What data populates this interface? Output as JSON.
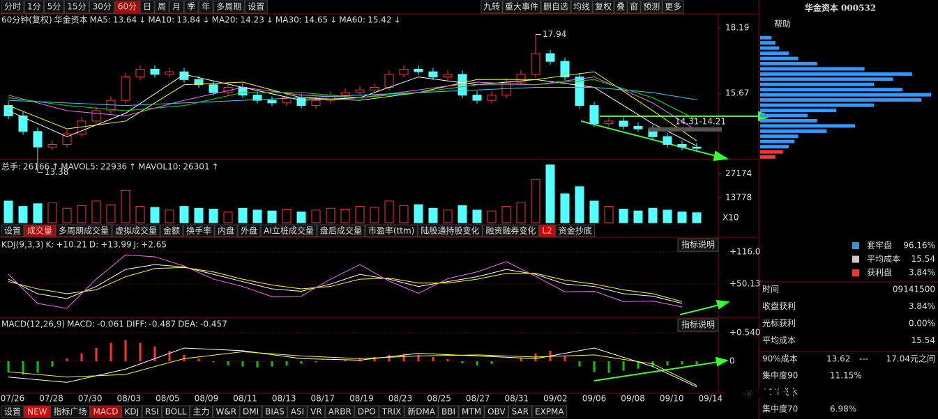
{
  "toolbar": {
    "left": [
      "分时",
      "1分",
      "5分",
      "15分",
      "30分",
      "60分",
      "日",
      "周",
      "月",
      "季",
      "年",
      "多周期",
      "设置"
    ],
    "active": "60分",
    "right": [
      "九转",
      "重大事件",
      "删自选",
      "均线",
      "复权",
      "叠",
      "窗",
      "预测",
      "更多"
    ]
  },
  "price_panel": {
    "period": "60分钟(复权)",
    "name": "华金资本",
    "mas": [
      {
        "label": "MA5:",
        "value": 13.64,
        "arrow": "↓",
        "color": "#ffffff",
        "line": [
          15.0,
          14.0,
          14.9,
          16.4,
          15.9,
          15.4,
          15.5,
          16.3,
          16.0,
          16.2,
          15.9,
          14.5,
          13.64
        ]
      },
      {
        "label": "MA10:",
        "value": 13.84,
        "arrow": "↓",
        "color": "#ffff00",
        "line": [
          15.2,
          14.3,
          14.6,
          16.0,
          16.1,
          15.5,
          15.4,
          15.7,
          16.2,
          16.2,
          16.5,
          15.0,
          13.84
        ]
      },
      {
        "label": "MA20:",
        "value": 14.23,
        "arrow": "↓",
        "color": "#ff66ff",
        "line": [
          15.6,
          15.0,
          14.8,
          15.4,
          15.9,
          15.6,
          15.5,
          15.8,
          16.1,
          16.0,
          16.3,
          15.3,
          14.23
        ]
      },
      {
        "label": "MA30:",
        "value": 14.65,
        "arrow": "↓",
        "color": "#00e600",
        "line": [
          15.5,
          15.2,
          15.0,
          15.2,
          15.7,
          15.7,
          15.5,
          15.7,
          16.0,
          16.0,
          16.2,
          15.5,
          14.65
        ]
      },
      {
        "label": "MA60:",
        "value": 15.42,
        "arrow": "↓",
        "color": "#33ccff",
        "line": [
          15.4,
          15.3,
          15.2,
          15.3,
          15.4,
          15.5,
          15.6,
          15.7,
          15.8,
          15.9,
          15.9,
          15.7,
          15.42
        ]
      }
    ],
    "ma_x": [
      0,
      4,
      8,
      12,
      16,
      20,
      24,
      28,
      32,
      36,
      40,
      44,
      47
    ],
    "ylim": [
      13.15,
      18.73
    ],
    "yticks": [
      18.19,
      15.67
    ],
    "open": [
      15.2,
      14.8,
      14.2,
      13.6,
      13.7,
      14.1,
      14.6,
      15.0,
      15.4,
      16.3,
      16.6,
      16.4,
      16.5,
      16.2,
      16.0,
      15.7,
      15.9,
      15.6,
      15.4,
      15.3,
      15.5,
      15.2,
      15.4,
      15.6,
      15.7,
      15.8,
      15.9,
      16.4,
      16.6,
      16.5,
      16.3,
      16.4,
      15.6,
      15.4,
      15.6,
      16.1,
      16.4,
      17.2,
      16.9,
      16.3,
      15.2,
      14.5,
      14.6,
      14.4,
      14.3,
      14.0,
      13.7,
      13.6
    ],
    "high": [
      15.35,
      14.95,
      14.35,
      13.85,
      14.25,
      14.75,
      15.15,
      15.55,
      16.45,
      16.75,
      16.75,
      16.65,
      16.65,
      16.35,
      16.15,
      16.05,
      16.05,
      15.75,
      15.55,
      15.65,
      15.65,
      15.55,
      15.75,
      15.85,
      15.95,
      16.05,
      16.55,
      16.75,
      16.75,
      16.65,
      16.55,
      16.55,
      15.75,
      15.75,
      16.25,
      16.55,
      17.94,
      17.35,
      17.05,
      16.45,
      15.35,
      14.75,
      14.75,
      14.55,
      14.45,
      14.15,
      13.85,
      13.75
    ],
    "low": [
      14.68,
      14.08,
      13.38,
      13.48,
      13.58,
      13.98,
      14.48,
      14.88,
      15.28,
      16.18,
      16.28,
      16.28,
      16.08,
      15.88,
      15.58,
      15.58,
      15.48,
      15.28,
      15.18,
      15.18,
      15.08,
      15.08,
      15.28,
      15.48,
      15.58,
      15.68,
      15.78,
      16.28,
      16.38,
      16.18,
      16.18,
      15.48,
      15.28,
      15.28,
      15.48,
      15.98,
      16.28,
      16.78,
      16.18,
      15.08,
      14.38,
      14.38,
      14.28,
      14.18,
      13.88,
      13.58,
      13.48,
      13.43
    ],
    "close": [
      14.8,
      14.2,
      13.6,
      13.7,
      14.1,
      14.6,
      15.0,
      15.4,
      16.3,
      16.6,
      16.4,
      16.5,
      16.2,
      16.0,
      15.7,
      15.9,
      15.6,
      15.4,
      15.3,
      15.5,
      15.2,
      15.4,
      15.6,
      15.7,
      15.8,
      15.9,
      16.4,
      16.6,
      16.5,
      16.3,
      16.4,
      15.6,
      15.4,
      15.6,
      16.1,
      16.4,
      17.2,
      16.9,
      16.3,
      15.2,
      14.5,
      14.6,
      14.4,
      14.3,
      14.0,
      13.7,
      13.6,
      13.55
    ],
    "max_label": 17.94,
    "min_label": 13.38,
    "range_label": "14.31-14.21"
  },
  "volume_panel": {
    "items": [
      {
        "label": "总手:",
        "value": 26166,
        "arrow": "↑",
        "color": "#ffffff"
      },
      {
        "label": "MAVOL5:",
        "value": 22936,
        "arrow": "↑",
        "color": "#ffff00"
      },
      {
        "label": "MAVOL10:",
        "value": 26301,
        "arrow": "↑",
        "color": "#ffffff"
      }
    ],
    "ylim": [
      0,
      33900
    ],
    "yticks": [
      27174,
      13778
    ],
    "scale": "X10",
    "values": [
      12000,
      9000,
      10500,
      11000,
      8000,
      9500,
      12000,
      10000,
      18000,
      9000,
      8500,
      7000,
      9000,
      8000,
      7500,
      6000,
      8000,
      7000,
      6500,
      7500,
      6000,
      7000,
      8000,
      7500,
      9000,
      8500,
      12000,
      9500,
      10000,
      8000,
      7000,
      9500,
      7000,
      6500,
      9000,
      11000,
      24000,
      32000,
      16000,
      20000,
      12000,
      9000,
      7500,
      6500,
      8000,
      7000,
      6000,
      5500
    ]
  },
  "tabs": {
    "items": [
      "设置",
      "成交量",
      "多周期成交量",
      "虚拟成交量",
      "金额",
      "换手率",
      "内盘",
      "外盘",
      "AI立桩成交量",
      "盘后成交量",
      "市盈率(ttm)",
      "陆股通持股变化",
      "融资融券变化",
      "L2",
      "资金抄底"
    ],
    "active": "成交量"
  },
  "kdj_panel": {
    "name": "KDJ(9,3,3)",
    "items": [
      {
        "label": "K:",
        "value": "+10.21",
        "color": "#ffffff"
      },
      {
        "label": "D:",
        "value": "+13.99",
        "color": "#ffff00"
      },
      {
        "label": "J:",
        "value": "+2.65",
        "color": "#ff66ff"
      }
    ],
    "button": "指标说明",
    "ylim": [
      -17.2,
      144.6
    ],
    "yticks": [
      {
        "value": 116,
        "label": "+116.0"
      },
      {
        "value": 50.13,
        "label": "+50.13"
      }
    ],
    "x": [
      0,
      2,
      4,
      6,
      8,
      10,
      12,
      14,
      16,
      18,
      20,
      22,
      24,
      26,
      28,
      30,
      32,
      34,
      36,
      38,
      40,
      42,
      44,
      46
    ],
    "K": [
      60,
      30,
      20,
      45,
      80,
      90,
      85,
      70,
      55,
      40,
      35,
      50,
      70,
      60,
      45,
      55,
      65,
      80,
      70,
      50,
      45,
      30,
      25,
      10.21
    ],
    "D": [
      55,
      40,
      30,
      38,
      65,
      82,
      84,
      75,
      60,
      48,
      40,
      45,
      60,
      62,
      52,
      52,
      60,
      72,
      72,
      58,
      50,
      38,
      30,
      13.99
    ],
    "J": [
      70,
      10,
      0,
      60,
      110,
      106,
      87,
      60,
      45,
      24,
      25,
      60,
      90,
      56,
      31,
      61,
      75,
      96,
      66,
      34,
      35,
      14,
      15,
      2.65
    ]
  },
  "macd_panel": {
    "name": "MACD(12,26,9)",
    "items": [
      {
        "label": "MACD:",
        "value": -0.061,
        "color": "#00e600"
      },
      {
        "label": "DIFF:",
        "value": -0.487,
        "color": "#ffffff"
      },
      {
        "label": "DEA:",
        "value": -0.457,
        "color": "#ffff00"
      }
    ],
    "button": "指标说明",
    "ylim": [
      -0.606,
      0.817
    ],
    "yticks": [
      {
        "value": 0.54,
        "label": "+0.540"
      },
      0
    ],
    "hist": [
      -0.2,
      -0.25,
      -0.22,
      -0.1,
      0.05,
      0.15,
      0.25,
      0.35,
      0.4,
      0.35,
      0.28,
      0.2,
      0.12,
      0.05,
      -0.02,
      -0.08,
      -0.1,
      -0.12,
      -0.1,
      -0.08,
      -0.05,
      -0.02,
      0.0,
      0.03,
      0.06,
      0.08,
      0.12,
      0.14,
      0.12,
      0.08,
      0.04,
      -0.04,
      -0.08,
      -0.05,
      0.0,
      0.06,
      0.15,
      0.2,
      0.1,
      -0.1,
      -0.2,
      -0.22,
      -0.18,
      -0.14,
      -0.1,
      -0.08,
      -0.06,
      -0.061
    ],
    "line_x": [
      0,
      4,
      8,
      12,
      16,
      20,
      24,
      28,
      32,
      36,
      40,
      44,
      47
    ],
    "DIFF": [
      -0.3,
      -0.4,
      -0.15,
      0.25,
      0.2,
      0.05,
      0.02,
      0.15,
      0.1,
      0.05,
      0.25,
      -0.1,
      -0.487
    ],
    "DEA": [
      -0.2,
      -0.3,
      -0.25,
      0.05,
      0.18,
      0.1,
      0.05,
      0.1,
      0.12,
      0.08,
      0.12,
      -0.05,
      -0.457
    ]
  },
  "dates": [
    "07/26",
    "07/28",
    "07/30",
    "08/03",
    "08/05",
    "08/09",
    "08/11",
    "08/13",
    "08/17",
    "08/19",
    "08/23",
    "08/25",
    "08/27",
    "08/31",
    "09/02",
    "09/06",
    "09/08",
    "09/10",
    "09/14"
  ],
  "bottom_tabs": {
    "items": [
      "设置",
      "NEW",
      "指标广场",
      "MACD",
      "KDJ",
      "RSI",
      "BOLL",
      "主力",
      "W&R",
      "DMI",
      "BIAS",
      "ASI",
      "VR",
      "ARBR",
      "DPO",
      "TRIX",
      "新DMA",
      "BBI",
      "MTM",
      "OBV",
      "SAR",
      "EXPMA"
    ],
    "active": "MACD"
  },
  "side": {
    "title": "华金资本 000532",
    "help": "帮助",
    "chips": {
      "prices": [
        13.2,
        13.4,
        13.6,
        13.8,
        14.0,
        14.2,
        14.4,
        14.6,
        14.8,
        15.0,
        15.2,
        15.4,
        15.6,
        15.8,
        16.0,
        16.2,
        16.4,
        16.6,
        16.8,
        17.0,
        17.2,
        17.4,
        17.6,
        17.8
      ],
      "shares": [
        0.8,
        1.2,
        1.5,
        1.8,
        2.0,
        3.5,
        5.0,
        3.0,
        2.5,
        4.0,
        6.0,
        8.5,
        9.0,
        7.5,
        6.0,
        7.0,
        8.0,
        5.5,
        3.0,
        2.0,
        1.5,
        1.0,
        0.8,
        0.6
      ],
      "loss_color": "#3399ff",
      "profit_color": "#ff3232"
    },
    "legend": [
      {
        "label": "套牢盘",
        "value": "96.16%",
        "color": "#3399cc"
      },
      {
        "label": "平均成本",
        "value": "15.54",
        "color": "#cccccc"
      },
      {
        "label": "获利盘",
        "value": "3.84%",
        "color": "#ff3232"
      }
    ],
    "stats": [
      [
        "时间",
        "09141500"
      ],
      [
        "收盘获利",
        "3.84%"
      ],
      [
        "光标获利",
        "0.00%"
      ],
      [
        "平均成本",
        "15.54"
      ]
    ],
    "cost": [
      [
        "90%成本",
        "13.62",
        "---",
        "17.04元之间"
      ],
      [
        "集中度90",
        "11.15%"
      ],
      [
        "70%成本"
      ],
      [
        "集中度70",
        "6.98%"
      ]
    ]
  },
  "watermark": "头条 @纵横鬼股子"
}
